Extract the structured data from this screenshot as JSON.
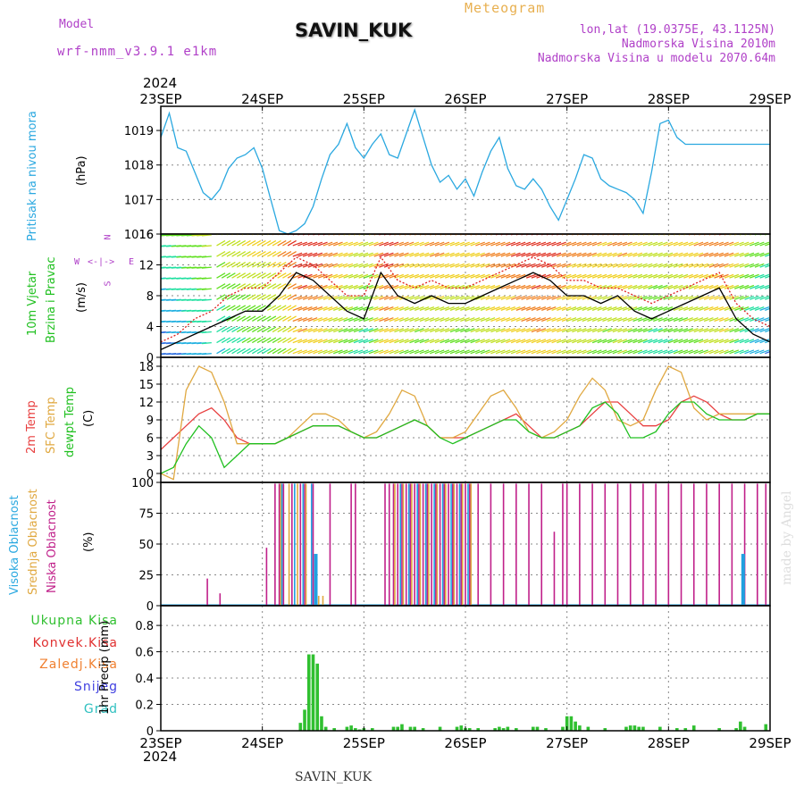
{
  "header": {
    "model_label": "Model",
    "model_name": "wrf-nmm_v3.9.1 e1km",
    "station": "SAVIN_KUK",
    "product": "Meteogram",
    "coords": "lon,lat (19.0375E, 43.1125N)",
    "elevation": "Nadmorska Visina 2010m",
    "model_elevation": "Nadmorska Visina u modelu 2070.64m"
  },
  "footer": {
    "station": "SAVIN_KUK",
    "credit": "made by Angel"
  },
  "colors": {
    "pressure": "#2aa8e0",
    "wind_avg": "#000000",
    "wind_gust": "#e02020",
    "t2m": "#e84040",
    "tsfc": "#e0a840",
    "tdew": "#20c020",
    "cloud_high": "#20a0e0",
    "cloud_mid": "#e0a840",
    "cloud_low": "#c0208a",
    "precip_total": "#30c030",
    "precip_conv": "#e03030",
    "precip_frozen": "#f08030",
    "precip_snow": "#4040e0",
    "precip_hail": "#30c0c0",
    "label_purple": "#b040c8"
  },
  "time_axis": {
    "year": "2024",
    "ticks": [
      "23SEP",
      "24SEP",
      "25SEP",
      "26SEP",
      "27SEP",
      "28SEP",
      "29SEP"
    ]
  },
  "panels": {
    "pressure": {
      "labels": [
        "Pritisak na nivou mora",
        "(hPa)"
      ]
    },
    "wind": {
      "labels": [
        "10m Vjetar",
        "Brzina i Pravac",
        "(m/s)"
      ],
      "compass": [
        "N",
        "S",
        "W",
        "E"
      ]
    },
    "temp": {
      "labels": [
        "2m Temp",
        "SFC Temp",
        "dewpt Temp",
        "(C)"
      ]
    },
    "cloud": {
      "labels": [
        "Visoka Oblacnost",
        "Srednja Oblacnost",
        "Niska Oblacnost",
        "(%)"
      ]
    },
    "precip": {
      "legend": [
        "Ukupna Kisa",
        "Konvek.Kisa",
        "Zaledj.Kisa",
        "Snijeg",
        "Grad"
      ],
      "ylabel": "1hr Precip (mm)"
    }
  },
  "chart_data": [
    {
      "type": "line",
      "ylim": [
        1016,
        1019.7
      ],
      "yticks": [
        1016,
        1017,
        1018,
        1019
      ],
      "x_hours": [
        0,
        2,
        4,
        6,
        8,
        10,
        12,
        14,
        16,
        18,
        20,
        22,
        24,
        26,
        28,
        30,
        32,
        34,
        36,
        38,
        40,
        42,
        44,
        46,
        48,
        50,
        52,
        54,
        56,
        58,
        60,
        62,
        64,
        66,
        68,
        70,
        72,
        74,
        76,
        78,
        80,
        82,
        84,
        86,
        88,
        90,
        92,
        94,
        96,
        98,
        100,
        102,
        104,
        106,
        108,
        110,
        112,
        114,
        116,
        118,
        120,
        122,
        124,
        126,
        128,
        130,
        132,
        134,
        136,
        138,
        140,
        142,
        144
      ],
      "series": [
        {
          "values": [
            1018.8,
            1019.5,
            1018.5,
            1018.4,
            1017.8,
            1017.2,
            1017.0,
            1017.3,
            1017.9,
            1018.2,
            1018.3,
            1018.5,
            1017.9,
            1017.0,
            1016.1,
            1016.0,
            1016.1,
            1016.3,
            1016.8,
            1017.6,
            1018.3,
            1018.6,
            1019.2,
            1018.5,
            1018.2,
            1018.6,
            1018.9,
            1018.3,
            1018.2,
            1018.9,
            1019.6,
            1018.8,
            1018.0,
            1017.5,
            1017.7,
            1017.3,
            1017.6,
            1017.1,
            1017.8,
            1018.4,
            1018.8,
            1017.9,
            1017.4,
            1017.3,
            1017.6,
            1017.3,
            1016.8,
            1016.4,
            1017.0,
            1017.6,
            1018.3,
            1018.2,
            1017.6,
            1017.4,
            1017.3,
            1017.2,
            1017.0,
            1016.6,
            1017.8,
            1019.2,
            1019.3,
            1018.8,
            1018.6,
            1018.6,
            1018.6,
            1018.6,
            1018.6,
            1018.6,
            1018.6,
            1018.6,
            1018.6,
            1018.6,
            1018.6
          ]
        }
      ]
    },
    {
      "type": "line",
      "ylim": [
        0,
        16
      ],
      "yticks": [
        0,
        4,
        8,
        12,
        16
      ],
      "x_hours": [
        0,
        4,
        8,
        12,
        16,
        20,
        24,
        28,
        32,
        36,
        40,
        44,
        48,
        52,
        56,
        60,
        64,
        68,
        72,
        76,
        80,
        84,
        88,
        92,
        96,
        100,
        104,
        108,
        112,
        116,
        120,
        124,
        128,
        132,
        136,
        140,
        144
      ],
      "series": [
        {
          "values": [
            1,
            2,
            3,
            4,
            5,
            6,
            6,
            8,
            11,
            10,
            8,
            6,
            5,
            11,
            8,
            7,
            8,
            7,
            7,
            8,
            9,
            10,
            11,
            10,
            8,
            8,
            7,
            8,
            6,
            5,
            6,
            7,
            8,
            9,
            5,
            3,
            2
          ]
        },
        {
          "values": [
            2,
            3,
            5,
            6,
            8,
            9,
            9,
            11,
            13,
            12,
            10,
            8,
            8,
            13,
            10,
            9,
            10,
            9,
            9,
            10,
            11,
            12,
            13,
            12,
            10,
            10,
            9,
            9,
            8,
            7,
            8,
            9,
            10,
            11,
            7,
            5,
            4
          ]
        }
      ]
    },
    {
      "type": "line",
      "ylim": [
        -1.5,
        19.5
      ],
      "yticks": [
        0,
        3,
        6,
        9,
        12,
        15,
        18
      ],
      "x_hours": [
        0,
        3,
        6,
        9,
        12,
        15,
        18,
        21,
        24,
        27,
        30,
        33,
        36,
        39,
        42,
        45,
        48,
        51,
        54,
        57,
        60,
        63,
        66,
        69,
        72,
        75,
        78,
        81,
        84,
        87,
        90,
        93,
        96,
        99,
        102,
        105,
        108,
        111,
        114,
        117,
        120,
        123,
        126,
        129,
        132,
        135,
        138,
        141,
        144
      ],
      "series": [
        {
          "values": [
            4,
            6,
            8,
            10,
            11,
            9,
            6,
            5,
            5,
            5,
            6,
            7,
            8,
            8,
            8,
            7,
            6,
            6,
            7,
            8,
            9,
            8,
            6,
            6,
            6,
            7,
            8,
            9,
            10,
            8,
            6,
            6,
            7,
            8,
            10,
            12,
            12,
            10,
            8,
            8,
            9,
            12,
            13,
            12,
            10,
            9,
            9,
            10,
            10
          ]
        },
        {
          "values": [
            0,
            -1,
            14,
            18,
            17,
            12,
            5,
            5,
            5,
            5,
            6,
            8,
            10,
            10,
            9,
            7,
            6,
            7,
            10,
            14,
            13,
            8,
            6,
            6,
            7,
            10,
            13,
            14,
            11,
            7,
            6,
            7,
            9,
            13,
            16,
            14,
            9,
            8,
            9,
            14,
            18,
            17,
            11,
            9,
            10,
            10,
            10,
            10,
            10
          ]
        },
        {
          "values": [
            0,
            1,
            5,
            8,
            6,
            1,
            3,
            5,
            5,
            5,
            6,
            7,
            8,
            8,
            8,
            7,
            6,
            6,
            7,
            8,
            9,
            8,
            6,
            5,
            6,
            7,
            8,
            9,
            9,
            7,
            6,
            6,
            7,
            8,
            11,
            12,
            10,
            6,
            6,
            7,
            10,
            12,
            12,
            10,
            9,
            9,
            9,
            10,
            10
          ]
        }
      ]
    },
    {
      "type": "bar",
      "ylim": [
        0,
        100
      ],
      "yticks": [
        0,
        25,
        50,
        75,
        100
      ],
      "series": [
        {
          "hours": [
            11,
            14,
            25,
            27,
            28,
            29,
            31,
            33,
            34,
            36,
            40,
            45,
            46,
            53,
            54,
            55,
            56,
            57,
            58,
            59,
            60,
            61,
            62,
            63,
            64,
            65,
            66,
            67,
            68,
            69,
            70,
            71,
            72,
            73,
            75,
            78,
            81,
            84,
            87,
            90,
            93,
            95,
            96,
            99,
            102,
            105,
            108,
            111,
            114,
            117,
            120,
            123,
            126,
            129,
            132,
            135,
            138,
            141,
            143
          ],
          "values": [
            22,
            10,
            47,
            99,
            99,
            99,
            99,
            99,
            99,
            99,
            99,
            99,
            99,
            99,
            99,
            99,
            99,
            99,
            99,
            99,
            99,
            99,
            99,
            99,
            99,
            99,
            99,
            99,
            99,
            99,
            99,
            99,
            99,
            99,
            99,
            99,
            99,
            99,
            99,
            99,
            60,
            99,
            99,
            99,
            99,
            99,
            99,
            99,
            99,
            99,
            99,
            99,
            99,
            99,
            99,
            99,
            99,
            99,
            99
          ]
        },
        {
          "hours": [
            28,
            30,
            32,
            34,
            37,
            38,
            55,
            57,
            59,
            61,
            63,
            65,
            67,
            69,
            71,
            73
          ],
          "values": [
            99,
            99,
            99,
            99,
            8,
            8,
            99,
            99,
            99,
            99,
            99,
            99,
            99,
            99,
            99,
            99
          ]
        },
        {
          "hours": [
            28,
            31,
            33,
            35,
            36,
            56,
            58,
            60,
            62,
            64,
            66,
            68,
            70,
            72,
            137
          ],
          "values": [
            99,
            99,
            99,
            99,
            42,
            99,
            99,
            99,
            99,
            99,
            99,
            99,
            99,
            99,
            42
          ]
        }
      ]
    },
    {
      "type": "bar",
      "ylim": [
        0,
        0.95
      ],
      "yticks": [
        0,
        0.2,
        0.4,
        0.6,
        0.8
      ],
      "series": [
        {
          "hours": [
            33,
            34,
            35,
            36,
            37,
            38,
            39,
            41,
            44,
            45,
            46,
            47,
            48,
            50,
            55,
            56,
            57,
            59,
            60,
            62,
            66,
            70,
            71,
            72,
            73,
            75,
            79,
            80,
            81,
            82,
            84,
            88,
            89,
            91,
            95,
            96,
            97,
            98,
            99,
            101,
            105,
            110,
            111,
            112,
            113,
            114,
            118,
            122,
            124,
            126,
            132,
            136,
            137,
            138,
            143
          ],
          "values": [
            0.06,
            0.16,
            0.58,
            0.58,
            0.51,
            0.11,
            0.03,
            0.02,
            0.03,
            0.04,
            0.02,
            0.01,
            0.02,
            0.02,
            0.03,
            0.03,
            0.05,
            0.03,
            0.03,
            0.02,
            0.03,
            0.03,
            0.04,
            0.02,
            0.02,
            0.02,
            0.02,
            0.03,
            0.02,
            0.03,
            0.02,
            0.03,
            0.03,
            0.02,
            0.03,
            0.11,
            0.11,
            0.07,
            0.04,
            0.03,
            0.02,
            0.03,
            0.04,
            0.04,
            0.03,
            0.03,
            0.03,
            0.02,
            0.02,
            0.04,
            0.02,
            0.02,
            0.07,
            0.03,
            0.05
          ]
        }
      ]
    }
  ]
}
